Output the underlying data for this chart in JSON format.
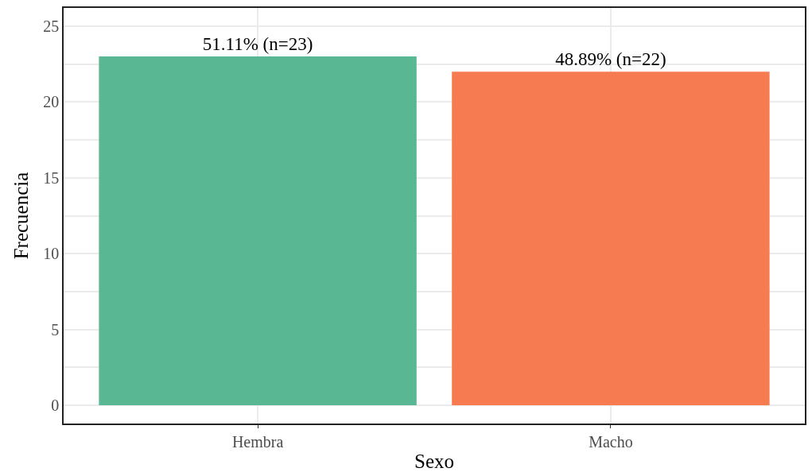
{
  "chart_data": {
    "type": "bar",
    "xlabel": "Sexo",
    "ylabel": "Frecuencia",
    "categories": [
      "Hembra",
      "Macho"
    ],
    "values": [
      23,
      22
    ],
    "colors": [
      "#59b893",
      "#f77b51"
    ],
    "value_labels": [
      "51.11% (n=23)",
      "48.89% (n=22)"
    ],
    "ylim": [
      -1.2,
      26.2
    ],
    "yticks": [
      0,
      {
        "value": 2.5,
        "label": null
      },
      5,
      {
        "value": 7.5,
        "label": null
      },
      10,
      {
        "value": 12.5,
        "label": null
      },
      15,
      {
        "value": 17.5,
        "label": null
      },
      20,
      {
        "value": 22.5,
        "label": null
      },
      25
    ],
    "grid": true
  }
}
